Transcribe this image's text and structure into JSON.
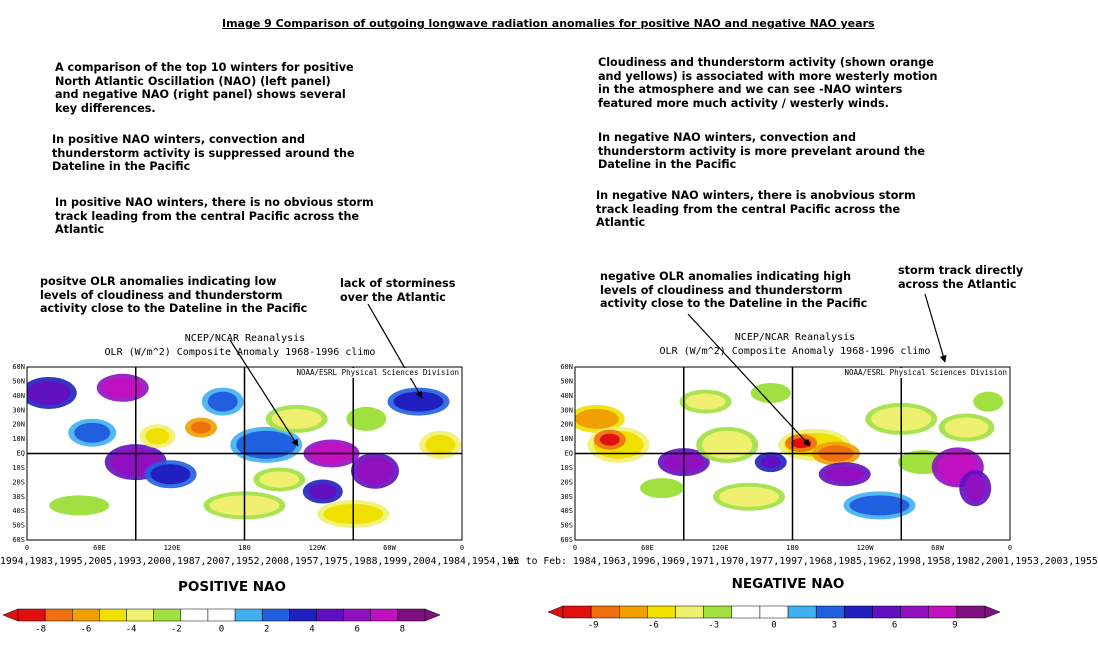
{
  "title": "Image 9 Comparison of outgoing longwave radiation anomalies for positive NAO and negative NAO years",
  "left": {
    "paragraphs": [
      [
        "A comparison of the top 10 winters for positive",
        "North Atlantic Oscillation (NAO) (left panel)",
        "and negative NAO (right panel) shows several",
        "key differences."
      ],
      [
        "In positive NAO winters, convection and",
        "thunderstorm activity is suppressed around the",
        "Dateline in the Pacific"
      ],
      [
        "In positive NAO winters, there is no obvious storm",
        "track leading from the central Pacific across the",
        "Atlantic"
      ]
    ],
    "annotations": [
      [
        "positve OLR anomalies indicating low",
        "levels of cloudiness and thunderstorm",
        "activity close to the Dateline in the Pacific"
      ],
      [
        "lack of storminess",
        "over the Atlantic"
      ]
    ],
    "map": {
      "header": [
        "NCEP/NCAR Reanalysis",
        "OLR (W/m^2) Composite Anomaly 1968-1996 climo"
      ],
      "credit": "NOAA/ESRL Physical Sciences Division",
      "lat_labels": [
        "60N",
        "50N",
        "40N",
        "30N",
        "20N",
        "10N",
        "EQ",
        "10S",
        "20S",
        "30S",
        "40S",
        "50S",
        "60S"
      ],
      "lon_labels": [
        "0",
        "60E",
        "120E",
        "180",
        "120W",
        "60W",
        "0"
      ],
      "years": "1994,1983,1995,2005,1993,2000,1987,2007,1952,2008,1957,1975,1988,1999,2004,1984,1954,195",
      "label": "POSITIVE NAO",
      "colorbar_ticks": [
        -8,
        -6,
        -4,
        -2,
        0,
        2,
        4,
        6,
        8
      ]
    }
  },
  "right": {
    "paragraphs": [
      [
        "Cloudiness and thunderstorm activity (shown orange",
        "and yellows) is associated with more westerly motion",
        "in the atmosphere and we can see -NAO winters",
        "featured more much activity / westerly winds."
      ],
      [
        "In negative NAO winters, convection and",
        "thunderstorm activity is more prevelant around the",
        "Dateline in the Pacific"
      ],
      [
        "In negative NAO winters, there is anobvious storm",
        "track leading from the central Pacific across the",
        "Atlantic"
      ]
    ],
    "annotations": [
      [
        "negative OLR anomalies indicating high",
        "levels of cloudiness and thunderstorm",
        "activity close to the Dateline in the Pacific"
      ],
      [
        "storm track directly",
        "across the Atlantic"
      ]
    ],
    "map": {
      "header": [
        "NCEP/NCAR Reanalysis",
        "OLR (W/m^2) Composite Anomaly 1968-1996 climo"
      ],
      "credit": "NOAA/ESRL Physical Sciences Division",
      "lat_labels": [
        "60N",
        "50N",
        "40N",
        "30N",
        "20N",
        "10N",
        "EQ",
        "10S",
        "20S",
        "30S",
        "40S",
        "50S",
        "60S"
      ],
      "lon_labels": [
        "0",
        "60E",
        "120E",
        "180",
        "120W",
        "60W",
        "0"
      ],
      "years": "ec to Feb: 1984,1963,1996,1969,1971,1970,1977,1997,1968,1985,1962,1998,1958,1982,2001,1953,2003,1955",
      "label": "NEGATIVE NAO",
      "colorbar_ticks": [
        -9,
        -6,
        -3,
        0,
        3,
        6,
        9
      ]
    }
  }
}
